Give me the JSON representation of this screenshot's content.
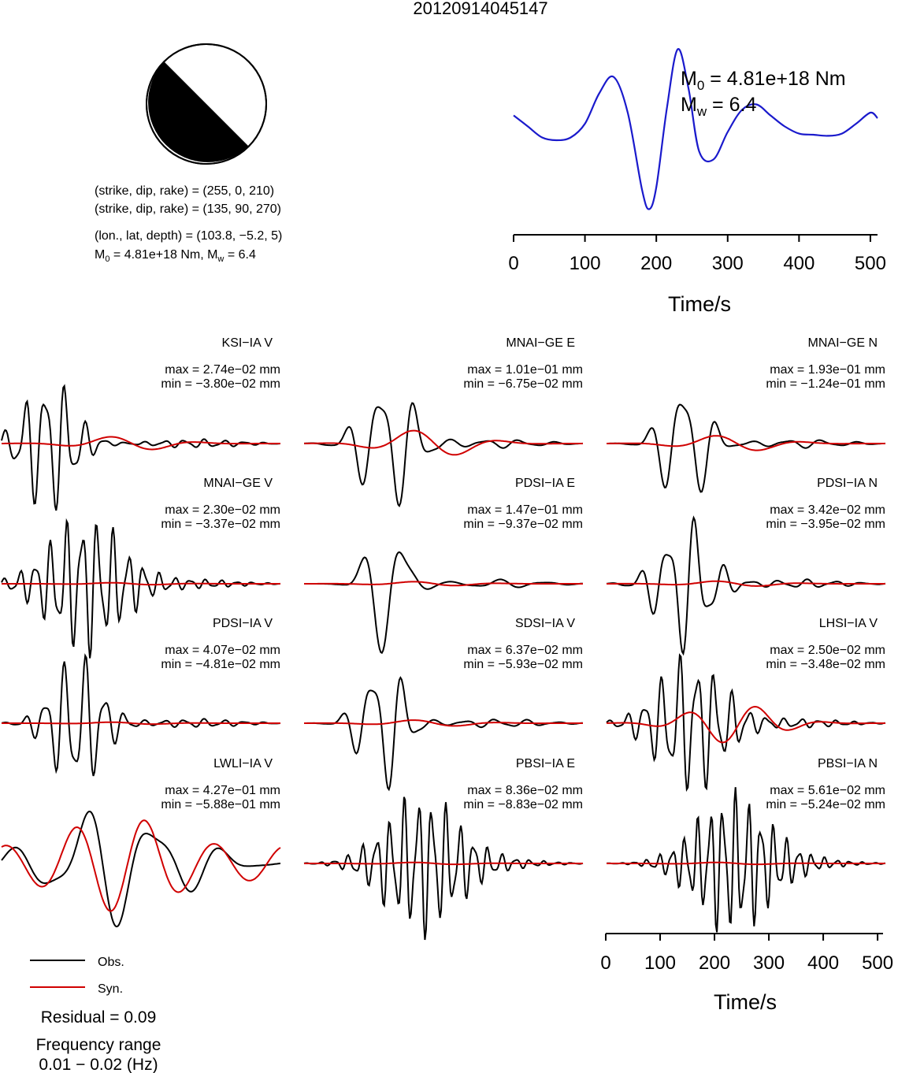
{
  "title": "20120914045147",
  "focal": {
    "line1": "(strike, dip, rake) = (255, 0, 210)",
    "line2": "(strike, dip, rake) = (135, 90, 270)",
    "line3": "(lon., lat, depth) = (103.8, −5.2, 5)",
    "m0_label": "M",
    "m0_sub": "0",
    "m0_value": " = 4.81e+18 Nm, M",
    "mw_sub": "w",
    "mw_value": " = 6.4"
  },
  "stf": {
    "m0_label": "M",
    "m0_sub": "0",
    "m0_value": " = 4.81e+18 Nm",
    "mw_label": "M",
    "mw_sub": "w",
    "mw_value": " = 6.4",
    "xlabel": "Time/s",
    "colors": {
      "line": "#1a1acc"
    }
  },
  "bottom_axis": {
    "xlabel": "Time/s"
  },
  "legend": {
    "obs": "Obs.",
    "syn": "Syn."
  },
  "residual": "Residual = 0.09",
  "freq_label": "Frequency range",
  "freq_range": "0.01 − 0.02 (Hz)",
  "chart_data": [
    {
      "type": "line",
      "name": "source-time-function",
      "x": [
        0,
        20,
        40,
        60,
        80,
        100,
        120,
        140,
        160,
        180,
        190,
        200,
        215,
        230,
        245,
        260,
        280,
        300,
        320,
        340,
        360,
        380,
        400,
        420,
        440,
        460,
        480,
        500,
        510
      ],
      "y": [
        0.45,
        0.25,
        0.05,
        0.0,
        0.05,
        0.3,
        0.85,
        1.15,
        0.5,
        -0.9,
        -1.25,
        -0.85,
        0.6,
        1.65,
        0.95,
        -0.2,
        -0.35,
        0.15,
        0.55,
        0.65,
        0.45,
        0.25,
        0.12,
        0.1,
        0.08,
        0.12,
        0.3,
        0.5,
        0.4
      ],
      "xlim": [
        0,
        510
      ],
      "xticks": [
        "0",
        "100",
        "200",
        "300",
        "400",
        "500"
      ]
    },
    {
      "type": "line",
      "name": "waveforms",
      "xlim": [
        0,
        510
      ],
      "xticks": [
        "0",
        "100",
        "200",
        "300",
        "400",
        "500"
      ],
      "colors": {
        "obs": "#000000",
        "syn": "#d00000"
      },
      "panels": [
        {
          "station": "KSI−IA V",
          "max": "max = 2.74e−02 mm",
          "min": "min = −3.80e−02 mm",
          "obs_amp": 1.0,
          "obs_peak": 0.17,
          "obs_decay": 0.12,
          "obs_cycles": 14,
          "syn_amp": 0.13,
          "syn_cycles": 3
        },
        {
          "station": "MNAI−GE E",
          "max": "max = 1.01e−01 mm",
          "min": "min = −6.75e−02 mm",
          "obs_amp": 1.0,
          "obs_peak": 0.3,
          "obs_decay": 0.12,
          "obs_cycles": 8,
          "syn_amp": 0.25,
          "syn_cycles": 3
        },
        {
          "station": "MNAI−GE N",
          "max": "max = 1.93e−01 mm",
          "min": "min = −1.24e−01 mm",
          "obs_amp": 1.0,
          "obs_peak": 0.28,
          "obs_decay": 0.1,
          "obs_cycles": 8,
          "syn_amp": 0.15,
          "syn_cycles": 3
        },
        {
          "station": "MNAI−GE V",
          "max": "max = 2.30e−02 mm",
          "min": "min = −3.37e−02 mm",
          "obs_amp": 1.0,
          "obs_peak": 0.3,
          "obs_decay": 0.18,
          "obs_cycles": 18,
          "syn_amp": 0.02,
          "syn_cycles": 3
        },
        {
          "station": "PDSI−IA E",
          "max": "max = 1.47e−01 mm",
          "min": "min = −9.37e−02 mm",
          "obs_amp": 1.0,
          "obs_peak": 0.3,
          "obs_decay": 0.09,
          "obs_cycles": 6,
          "syn_amp": 0.04,
          "syn_cycles": 3
        },
        {
          "station": "PDSI−IA N",
          "max": "max = 3.42e−02 mm",
          "min": "min = −3.95e−02 mm",
          "obs_amp": 1.0,
          "obs_peak": 0.28,
          "obs_decay": 0.12,
          "obs_cycles": 10,
          "syn_amp": 0.05,
          "syn_cycles": 3
        },
        {
          "station": "PDSI−IA V",
          "max": "max = 4.07e−02 mm",
          "min": "min = −4.81e−02 mm",
          "obs_amp": 1.0,
          "obs_peak": 0.27,
          "obs_decay": 0.12,
          "obs_cycles": 14,
          "syn_amp": 0.02,
          "syn_cycles": 3
        },
        {
          "station": "SDSI−IA V",
          "max": "max = 6.37e−02 mm",
          "min": "min = −5.93e−02 mm",
          "obs_amp": 1.0,
          "obs_peak": 0.28,
          "obs_decay": 0.1,
          "obs_cycles": 9,
          "syn_amp": 0.06,
          "syn_cycles": 3
        },
        {
          "station": "LHSI−IA V",
          "max": "max = 2.50e−02 mm",
          "min": "min = −3.48e−02 mm",
          "obs_amp": 1.0,
          "obs_peak": 0.3,
          "obs_decay": 0.16,
          "obs_cycles": 16,
          "syn_amp": 0.35,
          "syn_cycles": 4
        },
        {
          "station": "LWLI−IA V",
          "max": "max = 4.27e−01 mm",
          "min": "min = −5.88e−01 mm",
          "obs_amp": 0.85,
          "obs_peak": 0.4,
          "obs_decay": 0.3,
          "obs_cycles": 4,
          "syn_amp": 0.85,
          "syn_cycles": 4,
          "fit": true
        },
        {
          "station": "PBSI−IA E",
          "max": "max = 8.36e−02 mm",
          "min": "min = −8.83e−02 mm",
          "obs_amp": 1.0,
          "obs_peak": 0.42,
          "obs_decay": 0.18,
          "obs_cycles": 20,
          "syn_amp": 0.02,
          "syn_cycles": 3
        },
        {
          "station": "PBSI−IA N",
          "max": "max = 5.61e−02 mm",
          "min": "min = −5.24e−02 mm",
          "obs_amp": 1.0,
          "obs_peak": 0.45,
          "obs_decay": 0.18,
          "obs_cycles": 22,
          "syn_amp": 0.02,
          "syn_cycles": 3
        }
      ]
    }
  ]
}
